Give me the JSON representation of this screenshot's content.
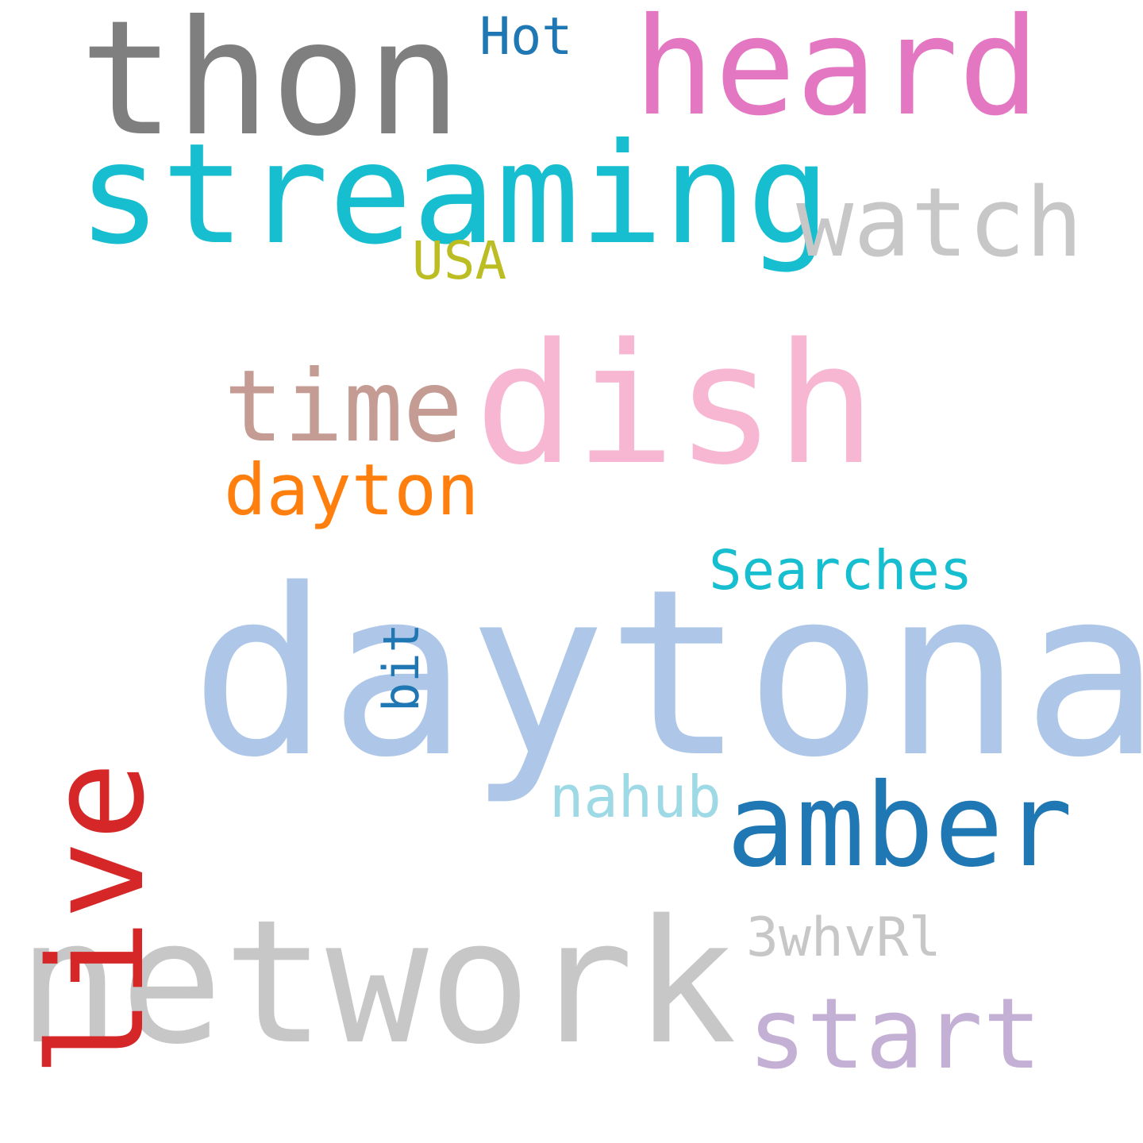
{
  "words": [
    {
      "text": "daytona",
      "color": "#aec7e8"
    },
    {
      "text": "network",
      "color": "#c7c7c7"
    },
    {
      "text": "streaming",
      "color": "#17becf"
    },
    {
      "text": "thon",
      "color": "#7f7f7f"
    },
    {
      "text": "heard",
      "color": "#e377c2"
    },
    {
      "text": "dish",
      "color": "#f7b6d2"
    },
    {
      "text": "live",
      "color": "#d62728"
    },
    {
      "text": "amber",
      "color": "#1f77b4"
    },
    {
      "text": "time",
      "color": "#c49c94"
    },
    {
      "text": "watch",
      "color": "#c7c7c7"
    },
    {
      "text": "start",
      "color": "#c5b0d5"
    },
    {
      "text": "dayton",
      "color": "#ff7f0e"
    },
    {
      "text": "Searches",
      "color": "#17becf"
    },
    {
      "text": "nahub",
      "color": "#9edae5"
    },
    {
      "text": "3whvRl",
      "color": "#c7c7c7"
    },
    {
      "text": "bit",
      "color": "#1f77b4"
    },
    {
      "text": "Hot",
      "color": "#1f77b4"
    },
    {
      "text": "USA",
      "color": "#bcbd22"
    }
  ]
}
